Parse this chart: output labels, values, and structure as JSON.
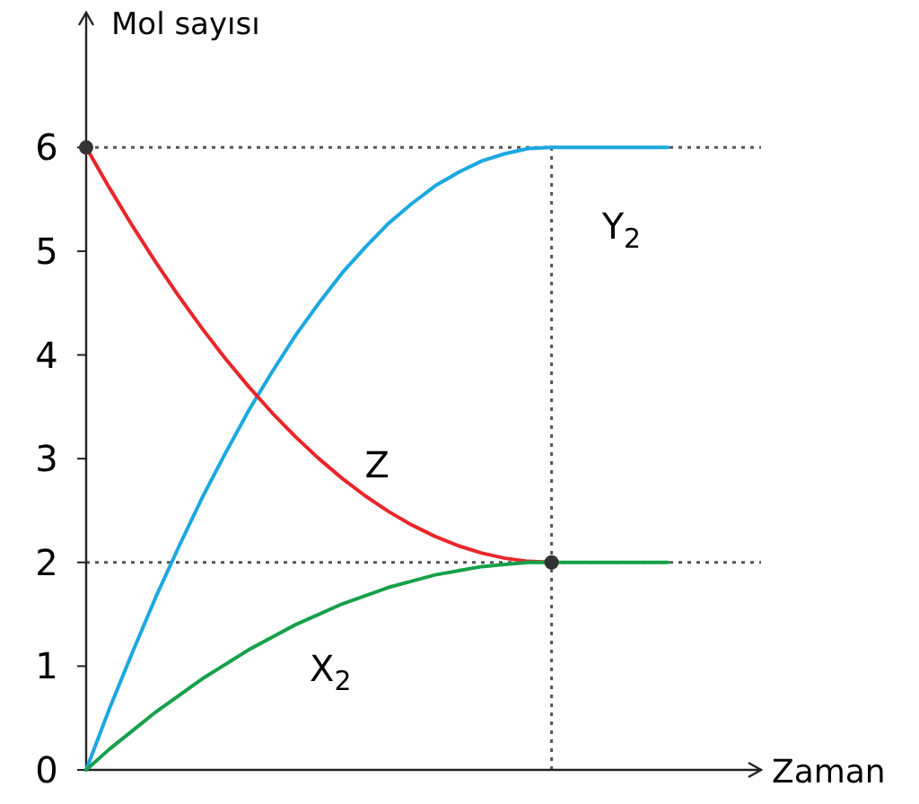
{
  "chart_data": {
    "type": "line",
    "xlabel": "Zaman",
    "ylabel": "Mol sayısı",
    "categories": [
      null,
      null,
      null,
      null,
      null,
      null,
      null,
      null,
      null,
      null,
      null,
      null,
      null,
      null,
      null,
      null,
      null,
      null,
      null,
      null,
      null,
      null,
      null,
      null,
      null,
      null,
      null,
      null,
      null,
      null
    ],
    "ylim": [
      0,
      7.3
    ],
    "yticks": [
      0,
      1,
      2,
      3,
      4,
      5,
      6
    ],
    "line_style": "solid",
    "series": [
      {
        "name": "Y$_{2}$",
        "color": "#1ba8e0",
        "values": [
          0,
          0.59,
          1.14,
          1.67,
          2.16,
          2.63,
          3.06,
          3.47,
          3.84,
          4.19,
          4.5,
          4.79,
          5.04,
          5.27,
          5.46,
          5.63,
          5.76,
          5.87,
          5.94,
          5.99,
          6,
          6,
          6,
          6,
          6,
          6,
          null,
          null,
          null,
          null
        ]
      },
      {
        "name": "Z",
        "color": "#e8262a",
        "values": [
          6,
          5.61,
          5.24,
          4.89,
          4.56,
          4.25,
          3.96,
          3.69,
          3.44,
          3.21,
          3,
          2.81,
          2.64,
          2.49,
          2.36,
          2.25,
          2.16,
          2.09,
          2.04,
          2.01,
          2,
          null,
          null,
          null,
          null,
          null,
          null,
          null,
          null,
          null
        ]
      },
      {
        "name": "X$_{2}$",
        "color": "#16a04a",
        "values": [
          0,
          0.2,
          0.38,
          0.56,
          0.72,
          0.88,
          1.02,
          1.16,
          1.28,
          1.4,
          1.5,
          1.6,
          1.68,
          1.76,
          1.82,
          1.88,
          1.92,
          1.96,
          1.98,
          2,
          2,
          2,
          2,
          2,
          2,
          2,
          null,
          null,
          null,
          null
        ]
      },
      {
        "type": "scatter",
        "color": "#333333",
        "marker": "circle",
        "values": [
          6,
          null,
          null,
          null,
          null,
          null,
          null,
          null,
          null,
          null,
          null,
          null,
          null,
          null,
          null,
          null,
          null,
          null,
          null,
          null,
          2,
          null,
          null,
          null,
          null,
          null,
          null,
          null,
          null,
          null
        ]
      }
    ],
    "ref_lines": [
      {
        "axis": "y",
        "value": 6,
        "color": "#555555",
        "line_style": "dotted"
      },
      {
        "axis": "y",
        "value": 2,
        "color": "#555555",
        "line_style": "dotted"
      },
      {
        "axis": "x",
        "color": "#555555",
        "line_style": "dotted"
      }
    ]
  }
}
